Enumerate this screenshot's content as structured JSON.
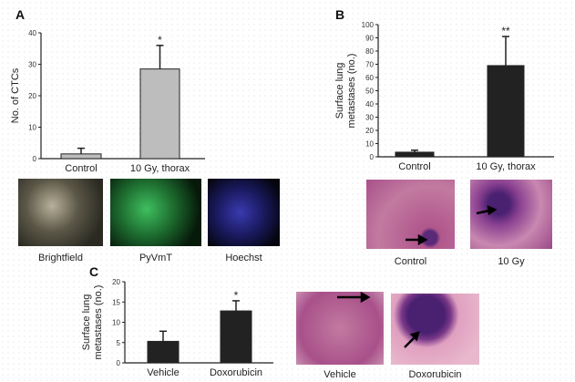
{
  "panels": {
    "a": "A",
    "b": "B",
    "c": "C"
  },
  "chart_data": [
    {
      "id": "A",
      "type": "bar",
      "ylabel": "No. of CTCs",
      "ylim": [
        0,
        40
      ],
      "yticks": [
        0,
        10,
        20,
        30,
        40
      ],
      "categories": [
        "Control",
        "10 Gy, thorax"
      ],
      "values": [
        1.5,
        28.5
      ],
      "errors": [
        1.8,
        7.5
      ],
      "annotations": [
        "",
        "*"
      ],
      "bar_color": "#bdbdbd"
    },
    {
      "id": "B",
      "type": "bar",
      "ylabel": [
        "Surface lung",
        "metastases (no.)"
      ],
      "ylim": [
        0,
        100
      ],
      "yticks": [
        0,
        10,
        20,
        30,
        40,
        50,
        60,
        70,
        80,
        90,
        100
      ],
      "categories": [
        "Control",
        "10 Gy, thorax"
      ],
      "values": [
        3.5,
        69
      ],
      "errors": [
        1.5,
        22
      ],
      "annotations": [
        "",
        "**"
      ],
      "bar_color": "#222222"
    },
    {
      "id": "C",
      "type": "bar",
      "ylabel": [
        "Surface lung",
        "metastases (no.)"
      ],
      "ylim": [
        0,
        20
      ],
      "yticks": [
        0,
        5,
        10,
        15,
        20
      ],
      "categories": [
        "Vehicle",
        "Doxorubicin"
      ],
      "values": [
        5.3,
        12.8
      ],
      "errors": [
        2.5,
        2.5
      ],
      "annotations": [
        "",
        "*"
      ],
      "bar_color": "#222222"
    }
  ],
  "images": {
    "a": [
      "Brightfield",
      "PyVmT",
      "Hoechst"
    ],
    "b": [
      "Control",
      "10 Gy"
    ],
    "c": [
      "Vehicle",
      "Doxorubicin"
    ]
  }
}
